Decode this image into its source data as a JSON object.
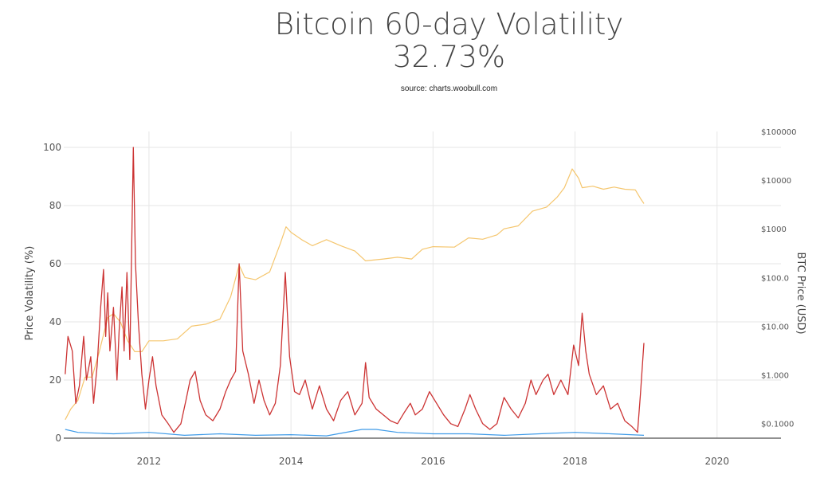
{
  "header": {
    "title": "Bitcoin 60-day Volatility",
    "subtitle": "32.73%",
    "source": "source: charts.woobull.com"
  },
  "colors": {
    "volatility": "#cc3333",
    "price": "#f5c66e",
    "low_series": "#3f9be8",
    "grid": "#e6e6e6",
    "axis": "#222222"
  },
  "chart_data": {
    "type": "line",
    "title": "Bitcoin 60-day Volatility",
    "subtitle": "32.73%",
    "ylabel": "Price Volatility (%)",
    "y2label": "BTC Price (USD)",
    "ylim": [
      0,
      100
    ],
    "y2scale": "log",
    "y2lim": [
      0.05,
      100000
    ],
    "xlim": [
      2010.8,
      2020.9
    ],
    "x_ticks": [
      {
        "label": "2012",
        "value": 2012
      },
      {
        "label": "2014",
        "value": 2014
      },
      {
        "label": "2016",
        "value": 2016
      },
      {
        "label": "2018",
        "value": 2018
      },
      {
        "label": "2020",
        "value": 2020
      }
    ],
    "y_ticks": [
      {
        "label": "0",
        "value": 0
      },
      {
        "label": "20",
        "value": 20
      },
      {
        "label": "40",
        "value": 40
      },
      {
        "label": "60",
        "value": 60
      },
      {
        "label": "80",
        "value": 80
      },
      {
        "label": "100",
        "value": 100
      }
    ],
    "y2_ticks": [
      {
        "label": "$0.1000",
        "value": 0.1
      },
      {
        "label": "$1.000",
        "value": 1
      },
      {
        "label": "$10.00",
        "value": 10
      },
      {
        "label": "$100.0",
        "value": 100
      },
      {
        "label": "$1000",
        "value": 1000
      },
      {
        "label": "$10000",
        "value": 10000
      },
      {
        "label": "$100000",
        "value": 100000
      }
    ],
    "grid": true,
    "series": [
      {
        "axis": "left",
        "color": "#cc3333",
        "points": [
          [
            2010.82,
            22
          ],
          [
            2010.86,
            35
          ],
          [
            2010.92,
            30
          ],
          [
            2010.97,
            12
          ],
          [
            2011.02,
            18
          ],
          [
            2011.08,
            35
          ],
          [
            2011.12,
            20
          ],
          [
            2011.18,
            28
          ],
          [
            2011.22,
            12
          ],
          [
            2011.27,
            25
          ],
          [
            2011.32,
            45
          ],
          [
            2011.36,
            58
          ],
          [
            2011.39,
            35
          ],
          [
            2011.42,
            50
          ],
          [
            2011.45,
            30
          ],
          [
            2011.5,
            45
          ],
          [
            2011.55,
            20
          ],
          [
            2011.58,
            37
          ],
          [
            2011.62,
            52
          ],
          [
            2011.65,
            30
          ],
          [
            2011.69,
            57
          ],
          [
            2011.73,
            27
          ],
          [
            2011.78,
            100
          ],
          [
            2011.81,
            60
          ],
          [
            2011.85,
            40
          ],
          [
            2011.9,
            22
          ],
          [
            2011.95,
            10
          ],
          [
            2012.0,
            20
          ],
          [
            2012.05,
            28
          ],
          [
            2012.1,
            18
          ],
          [
            2012.18,
            8
          ],
          [
            2012.27,
            5
          ],
          [
            2012.35,
            2
          ],
          [
            2012.45,
            5
          ],
          [
            2012.52,
            13
          ],
          [
            2012.58,
            20
          ],
          [
            2012.65,
            23
          ],
          [
            2012.72,
            13
          ],
          [
            2012.8,
            8
          ],
          [
            2012.9,
            6
          ],
          [
            2013.0,
            10
          ],
          [
            2013.08,
            16
          ],
          [
            2013.15,
            20
          ],
          [
            2013.22,
            23
          ],
          [
            2013.27,
            60
          ],
          [
            2013.32,
            30
          ],
          [
            2013.4,
            22
          ],
          [
            2013.48,
            12
          ],
          [
            2013.55,
            20
          ],
          [
            2013.62,
            13
          ],
          [
            2013.7,
            8
          ],
          [
            2013.78,
            12
          ],
          [
            2013.85,
            25
          ],
          [
            2013.92,
            57
          ],
          [
            2013.98,
            28
          ],
          [
            2014.05,
            16
          ],
          [
            2014.12,
            15
          ],
          [
            2014.2,
            20
          ],
          [
            2014.3,
            10
          ],
          [
            2014.4,
            18
          ],
          [
            2014.5,
            10
          ],
          [
            2014.6,
            6
          ],
          [
            2014.7,
            13
          ],
          [
            2014.8,
            16
          ],
          [
            2014.9,
            8
          ],
          [
            2015.0,
            12
          ],
          [
            2015.05,
            26
          ],
          [
            2015.1,
            14
          ],
          [
            2015.2,
            10
          ],
          [
            2015.3,
            8
          ],
          [
            2015.4,
            6
          ],
          [
            2015.5,
            5
          ],
          [
            2015.6,
            9
          ],
          [
            2015.68,
            12
          ],
          [
            2015.75,
            8
          ],
          [
            2015.85,
            10
          ],
          [
            2015.95,
            16
          ],
          [
            2016.05,
            12
          ],
          [
            2016.15,
            8
          ],
          [
            2016.25,
            5
          ],
          [
            2016.35,
            4
          ],
          [
            2016.45,
            10
          ],
          [
            2016.52,
            15
          ],
          [
            2016.6,
            10
          ],
          [
            2016.7,
            5
          ],
          [
            2016.8,
            3
          ],
          [
            2016.9,
            5
          ],
          [
            2017.0,
            14
          ],
          [
            2017.1,
            10
          ],
          [
            2017.2,
            7
          ],
          [
            2017.3,
            12
          ],
          [
            2017.38,
            20
          ],
          [
            2017.45,
            15
          ],
          [
            2017.55,
            20
          ],
          [
            2017.62,
            22
          ],
          [
            2017.7,
            15
          ],
          [
            2017.8,
            20
          ],
          [
            2017.9,
            15
          ],
          [
            2017.98,
            32
          ],
          [
            2018.05,
            25
          ],
          [
            2018.1,
            43
          ],
          [
            2018.15,
            30
          ],
          [
            2018.2,
            22
          ],
          [
            2018.3,
            15
          ],
          [
            2018.4,
            18
          ],
          [
            2018.5,
            10
          ],
          [
            2018.6,
            12
          ],
          [
            2018.7,
            6
          ],
          [
            2018.8,
            4
          ],
          [
            2018.88,
            2
          ],
          [
            2018.92,
            15
          ],
          [
            2018.97,
            32.73
          ]
        ]
      },
      {
        "axis": "right",
        "color": "#f5c66e",
        "points": [
          [
            2010.82,
            0.12
          ],
          [
            2010.9,
            0.2
          ],
          [
            2011.0,
            0.3
          ],
          [
            2011.1,
            0.9
          ],
          [
            2011.2,
            0.9
          ],
          [
            2011.3,
            3
          ],
          [
            2011.42,
            15
          ],
          [
            2011.5,
            18
          ],
          [
            2011.6,
            12
          ],
          [
            2011.7,
            5
          ],
          [
            2011.8,
            3
          ],
          [
            2011.9,
            3
          ],
          [
            2012.0,
            5
          ],
          [
            2012.2,
            5
          ],
          [
            2012.4,
            5.5
          ],
          [
            2012.6,
            10
          ],
          [
            2012.8,
            11
          ],
          [
            2013.0,
            14
          ],
          [
            2013.15,
            40
          ],
          [
            2013.27,
            180
          ],
          [
            2013.35,
            100
          ],
          [
            2013.5,
            90
          ],
          [
            2013.7,
            130
          ],
          [
            2013.85,
            500
          ],
          [
            2013.93,
            1100
          ],
          [
            2014.0,
            850
          ],
          [
            2014.15,
            600
          ],
          [
            2014.3,
            450
          ],
          [
            2014.5,
            600
          ],
          [
            2014.7,
            450
          ],
          [
            2014.9,
            350
          ],
          [
            2015.05,
            220
          ],
          [
            2015.3,
            240
          ],
          [
            2015.5,
            260
          ],
          [
            2015.7,
            240
          ],
          [
            2015.85,
            380
          ],
          [
            2016.0,
            430
          ],
          [
            2016.3,
            420
          ],
          [
            2016.5,
            650
          ],
          [
            2016.7,
            610
          ],
          [
            2016.9,
            750
          ],
          [
            2017.0,
            1000
          ],
          [
            2017.2,
            1150
          ],
          [
            2017.4,
            2300
          ],
          [
            2017.6,
            2800
          ],
          [
            2017.75,
            4500
          ],
          [
            2017.85,
            7000
          ],
          [
            2017.96,
            17000
          ],
          [
            2018.05,
            11000
          ],
          [
            2018.1,
            7000
          ],
          [
            2018.25,
            7500
          ],
          [
            2018.4,
            6500
          ],
          [
            2018.55,
            7200
          ],
          [
            2018.7,
            6500
          ],
          [
            2018.85,
            6300
          ],
          [
            2018.93,
            4000
          ],
          [
            2018.97,
            3300
          ]
        ]
      },
      {
        "axis": "left",
        "color": "#3f9be8",
        "points": [
          [
            2010.82,
            3
          ],
          [
            2011.0,
            2
          ],
          [
            2011.5,
            1.5
          ],
          [
            2012.0,
            2
          ],
          [
            2012.5,
            1
          ],
          [
            2013.0,
            1.5
          ],
          [
            2013.5,
            1
          ],
          [
            2014.0,
            1.2
          ],
          [
            2014.5,
            0.8
          ],
          [
            2015.0,
            3
          ],
          [
            2015.2,
            3
          ],
          [
            2015.5,
            2
          ],
          [
            2016.0,
            1.5
          ],
          [
            2016.5,
            1.5
          ],
          [
            2017.0,
            1
          ],
          [
            2017.5,
            1.5
          ],
          [
            2018.0,
            2
          ],
          [
            2018.5,
            1.5
          ],
          [
            2018.97,
            1
          ]
        ]
      }
    ]
  }
}
